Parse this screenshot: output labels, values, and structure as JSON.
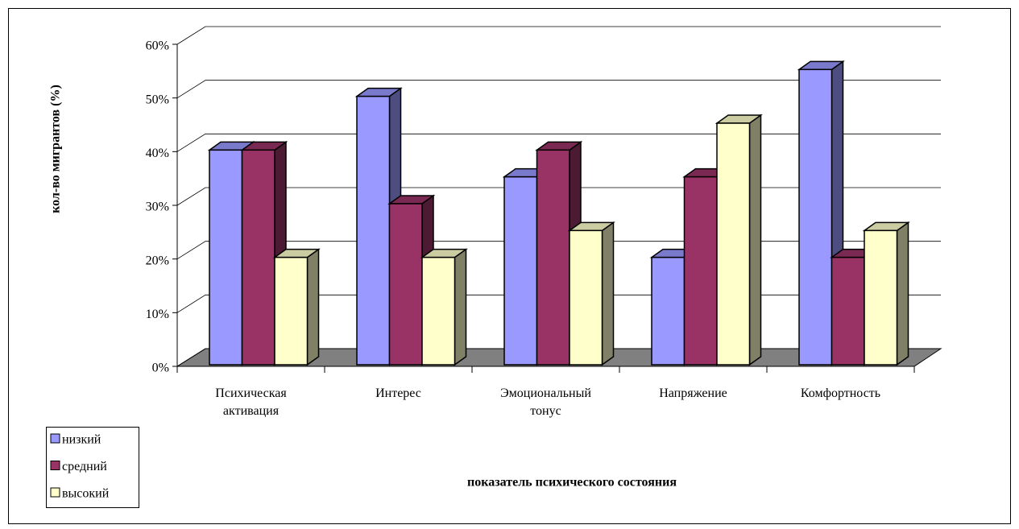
{
  "chart_data": {
    "type": "bar3d",
    "y_axis_label": "кол-во мигрантов (%)",
    "x_axis_label": "показатель психического состояния",
    "categories": [
      "Психическая активация",
      "Интерес",
      "Эмоциональный тонус",
      "Напряжение",
      "Комфортность"
    ],
    "series": [
      {
        "name": "низкий",
        "color": "#9999ff",
        "values": [
          40,
          50,
          35,
          20,
          55
        ]
      },
      {
        "name": "средний",
        "color": "#993366",
        "values": [
          40,
          30,
          40,
          35,
          20
        ]
      },
      {
        "name": "высокий",
        "color": "#ffffcc",
        "values": [
          20,
          20,
          25,
          45,
          25
        ]
      }
    ],
    "ylim": [
      0,
      60
    ],
    "yticks": [
      {
        "value": 0,
        "label": "0%"
      },
      {
        "value": 10,
        "label": "10%"
      },
      {
        "value": 20,
        "label": "20%"
      },
      {
        "value": 30,
        "label": "30%"
      },
      {
        "value": 40,
        "label": "40%"
      },
      {
        "value": 50,
        "label": "50%"
      },
      {
        "value": 60,
        "label": "60%"
      }
    ],
    "grid": true,
    "legend": "bottom-left"
  }
}
